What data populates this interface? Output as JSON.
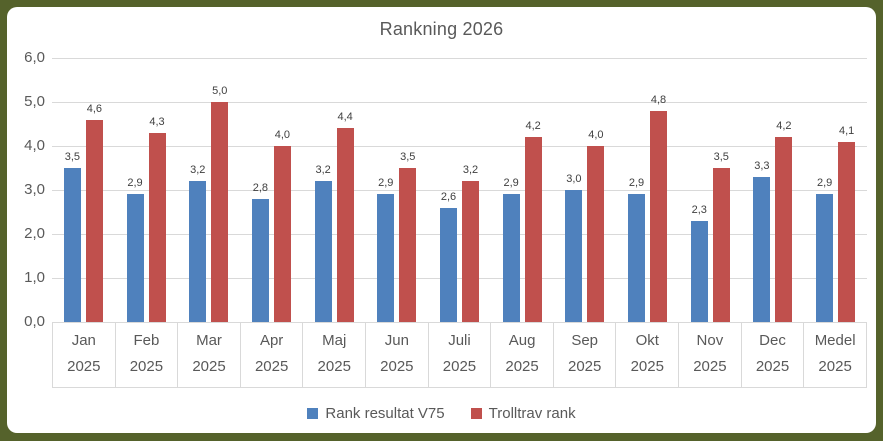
{
  "frame": {
    "border_color": "#55622B",
    "background_color": "#FFFFFF"
  },
  "colors": {
    "gridline": "#D9D9D9",
    "axis_text": "#595959",
    "title_text": "#595959",
    "data_label_text": "#404040"
  },
  "chart_data": {
    "type": "bar",
    "title": "Rankning 2026",
    "xlabel": "",
    "ylabel": "",
    "ylim": [
      0,
      6
    ],
    "grid": true,
    "legend_position": "bottom",
    "decimal_separator": ",",
    "y_ticks": [
      "6,0",
      "5,0",
      "4,0",
      "3,0",
      "2,0",
      "1,0",
      "0,0"
    ],
    "categories": [
      {
        "label": "Jan",
        "sublabel": "2025"
      },
      {
        "label": "Feb",
        "sublabel": "2025"
      },
      {
        "label": "Mar",
        "sublabel": "2025"
      },
      {
        "label": "Apr",
        "sublabel": "2025"
      },
      {
        "label": "Maj",
        "sublabel": "2025"
      },
      {
        "label": "Jun",
        "sublabel": "2025"
      },
      {
        "label": "Juli",
        "sublabel": "2025"
      },
      {
        "label": "Aug",
        "sublabel": "2025"
      },
      {
        "label": "Sep",
        "sublabel": "2025"
      },
      {
        "label": "Okt",
        "sublabel": "2025"
      },
      {
        "label": "Nov",
        "sublabel": "2025"
      },
      {
        "label": "Dec",
        "sublabel": "2025"
      },
      {
        "label": "Medel",
        "sublabel": "2025"
      }
    ],
    "series": [
      {
        "name": "Rank resultat V75",
        "color": "#4F81BD",
        "values": [
          3.5,
          2.9,
          3.2,
          2.8,
          3.2,
          2.9,
          2.6,
          2.9,
          3.0,
          2.9,
          2.3,
          3.3,
          2.9
        ]
      },
      {
        "name": "Trolltrav rank",
        "color": "#C0504D",
        "values": [
          4.6,
          4.3,
          5.0,
          4.0,
          4.4,
          3.5,
          3.2,
          4.2,
          4.0,
          4.8,
          3.5,
          4.2,
          4.1
        ]
      }
    ]
  }
}
